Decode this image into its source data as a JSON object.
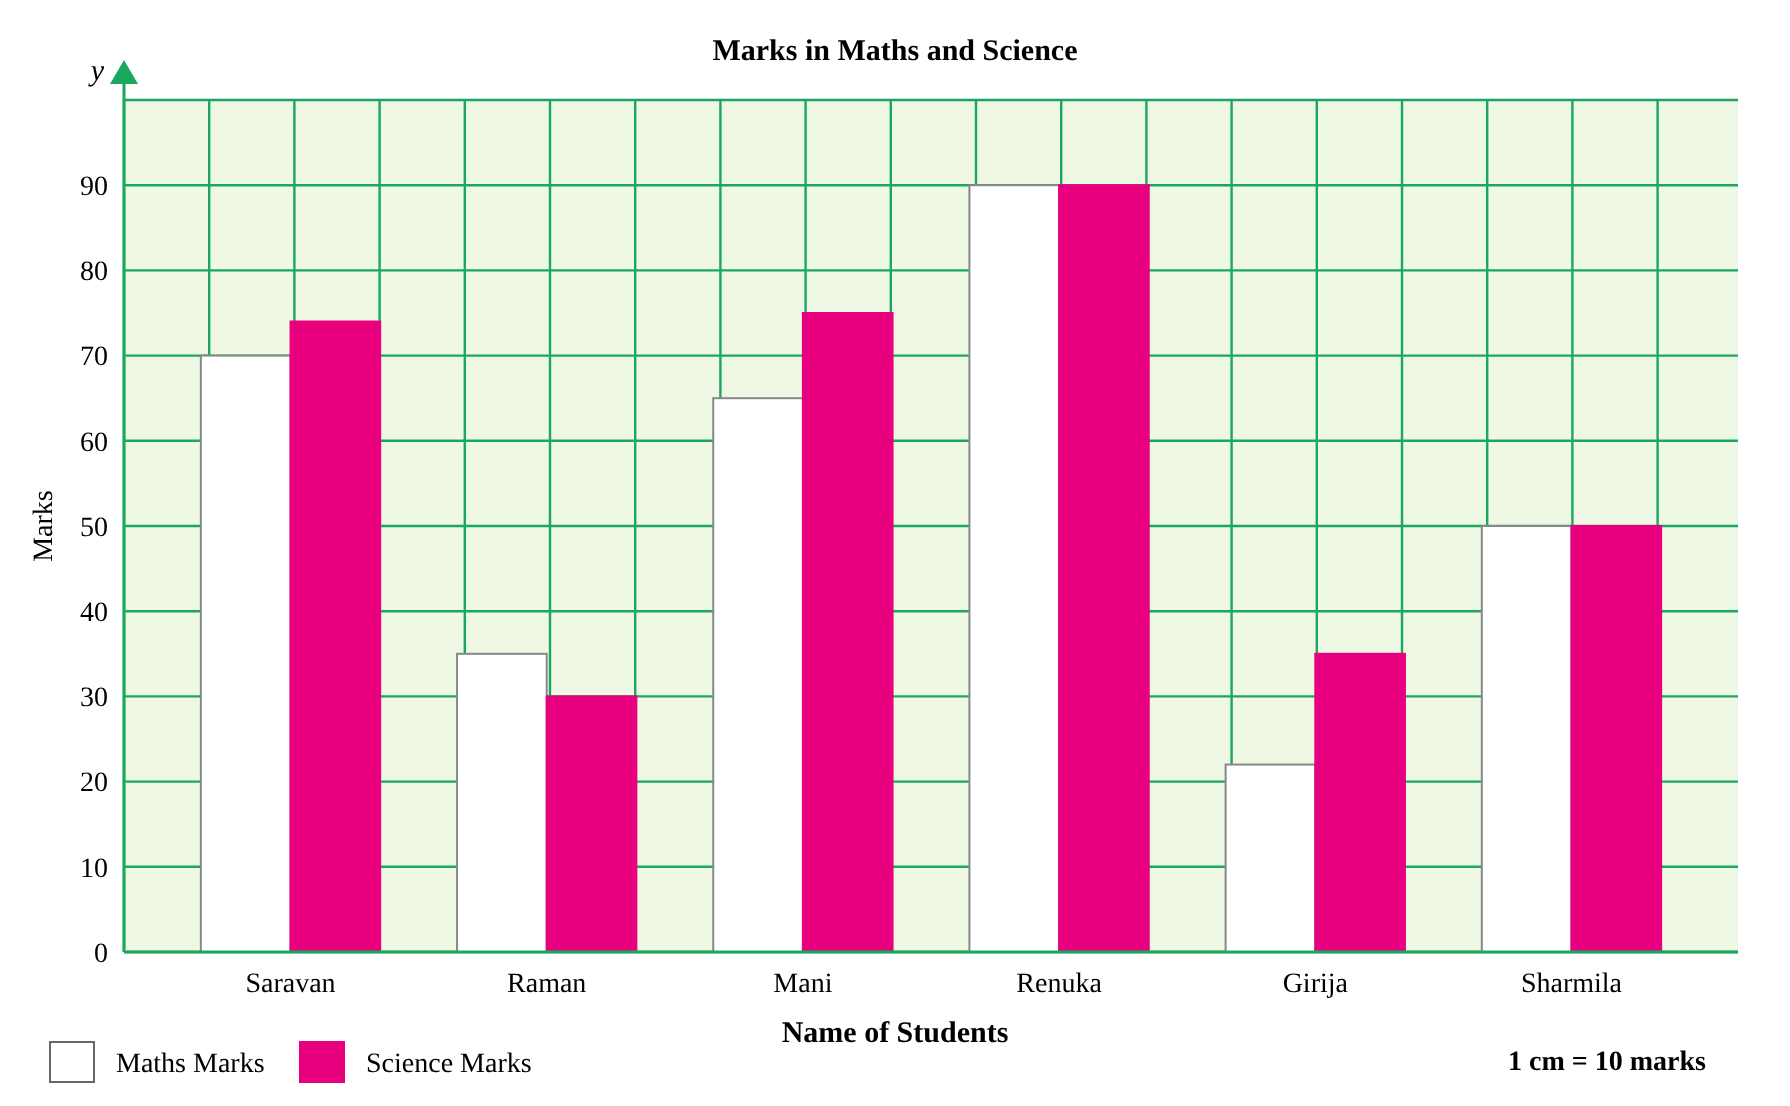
{
  "chart_data": {
    "type": "bar",
    "title": "Marks in Maths and Science",
    "xlabel": "Name of Students",
    "ylabel": "Marks",
    "categories": [
      "Saravan",
      "Raman",
      "Mani",
      "Renuka",
      "Girija",
      "Sharmila"
    ],
    "series": [
      {
        "name": "Maths Marks",
        "color": "#ffffff",
        "values": [
          70,
          35,
          65,
          90,
          22,
          50
        ]
      },
      {
        "name": "Science Marks",
        "color": "#e8007f",
        "values": [
          74,
          30,
          75,
          90,
          35,
          50
        ]
      }
    ],
    "ylim": [
      0,
      100
    ],
    "yticks": [
      0,
      10,
      20,
      30,
      40,
      50,
      60,
      70,
      80,
      90
    ],
    "grid": true,
    "legend": "bottom left",
    "annotations": [
      "y",
      "1 cm = 10 marks"
    ]
  }
}
